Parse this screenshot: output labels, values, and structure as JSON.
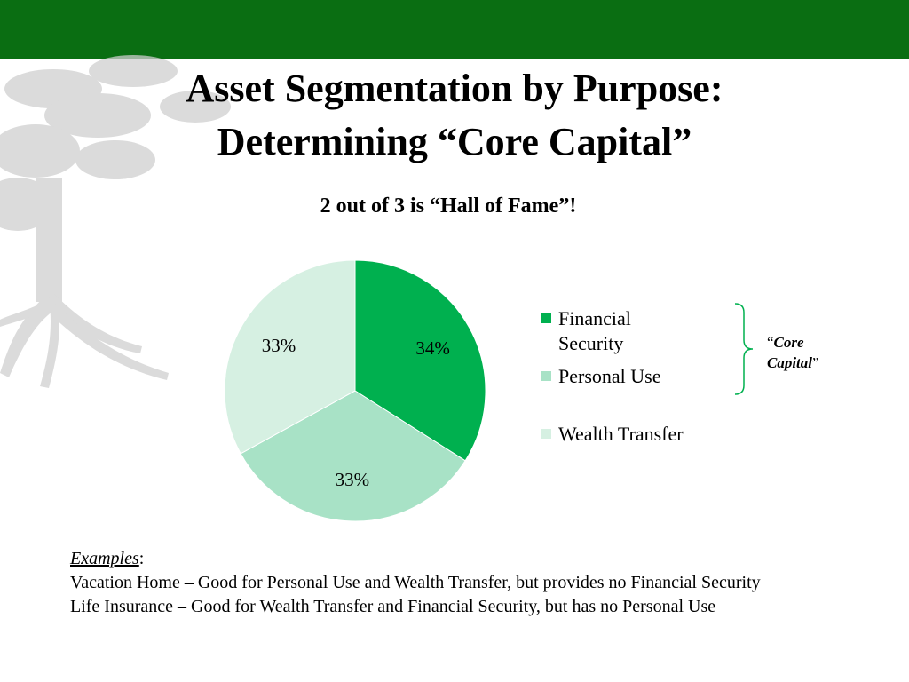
{
  "slide": {
    "title_line1": "Asset Segmentation by Purpose:",
    "title_line2": "Determining “Core Capital”"
  },
  "chart_data": {
    "type": "pie",
    "title": "2 out of 3 is “Hall of Fame”!",
    "categories": [
      "Financial Security",
      "Personal Use",
      "Wealth Transfer"
    ],
    "values": [
      34,
      33,
      33
    ],
    "data_labels": [
      "34%",
      "33%",
      "33%"
    ],
    "colors": [
      "#00b04f",
      "#a8e2c6",
      "#d6f0e2"
    ],
    "legend_position": "right"
  },
  "legend": {
    "financial_security_line1": "Financial",
    "financial_security_line2": "Security",
    "personal_use": "Personal Use",
    "wealth_transfer": "Wealth Transfer"
  },
  "annotation": {
    "open_quote": "“",
    "text_line1": "Core",
    "text_line2": "Capital",
    "close_quote": "”",
    "bracket_color": "#00b04f"
  },
  "examples": {
    "heading": "Examples",
    "colon": ":",
    "line1": "Vacation Home – Good for Personal Use and Wealth Transfer, but provides no Financial Security",
    "line2": "Life Insurance – Good for Wealth Transfer and Financial Security, but has no Personal Use"
  },
  "theme": {
    "header_bar": "#0a6e12",
    "tree_watermark": "#c9c9c9"
  }
}
